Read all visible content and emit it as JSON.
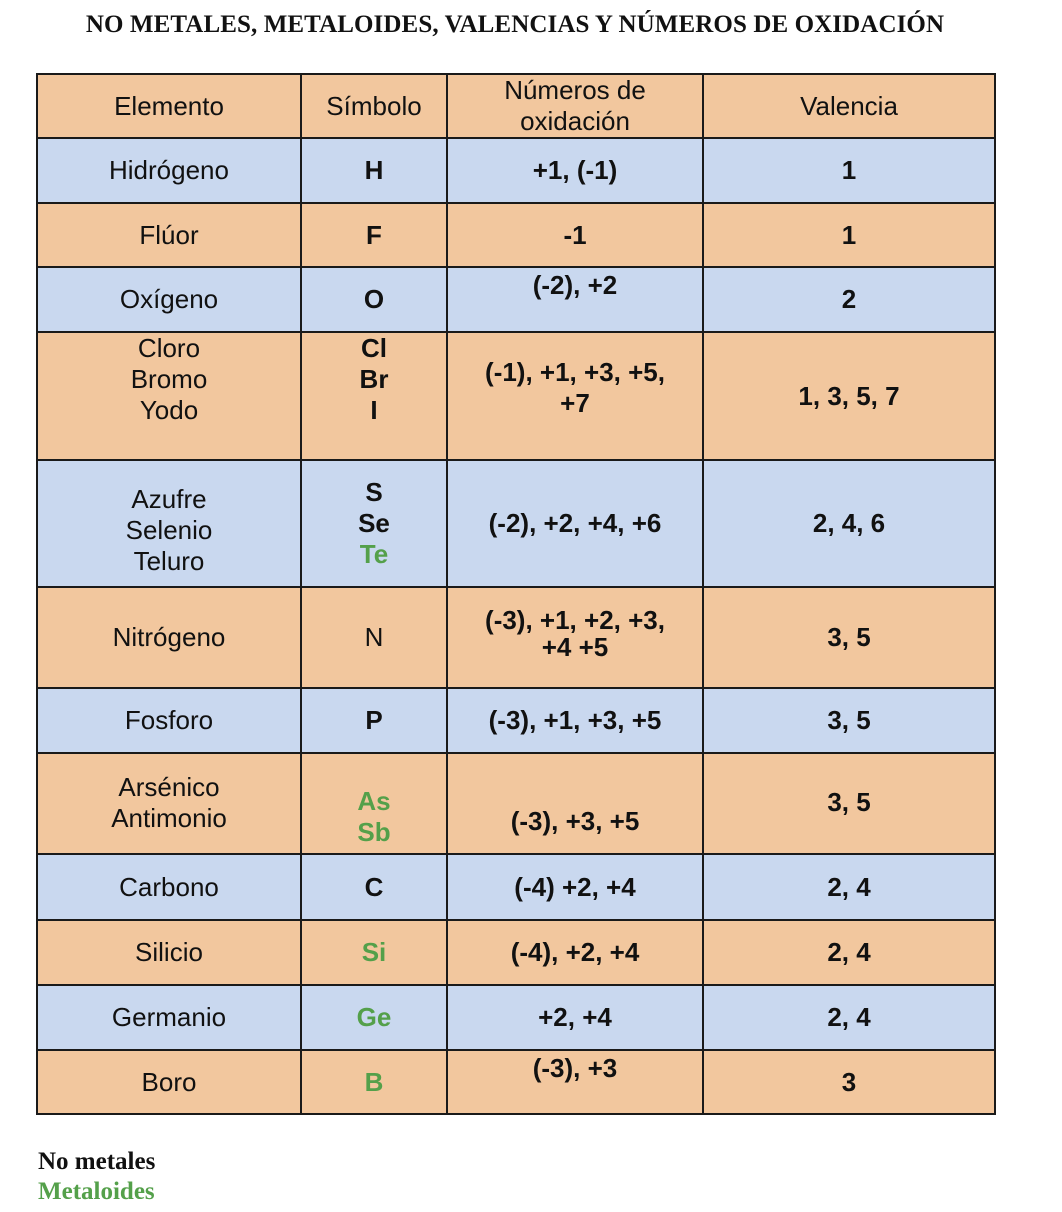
{
  "title": "NO METALES, METALOIDES, VALENCIAS Y NÚMEROS DE OXIDACIÓN",
  "headers": {
    "element": "Elemento",
    "symbol": "Símbolo",
    "oxidation_line1": "Números de",
    "oxidation_line2": "oxidación",
    "valence": "Valencia"
  },
  "rows": [
    {
      "elements": [
        "Hidrógeno"
      ],
      "symbols": [
        "H"
      ],
      "oxidation": [
        "+1, (-1)"
      ],
      "valence": "1"
    },
    {
      "elements": [
        "Flúor"
      ],
      "symbols": [
        "F"
      ],
      "oxidation": [
        "-1"
      ],
      "valence": "1"
    },
    {
      "elements": [
        "Oxígeno"
      ],
      "symbols": [
        "O"
      ],
      "oxidation": [
        "(-2), +2"
      ],
      "valence": "2"
    },
    {
      "elements": [
        "Cloro",
        "Bromo",
        "Yodo"
      ],
      "symbols": [
        "Cl",
        "Br",
        "I"
      ],
      "oxidation": [
        "(-1), +1, +3, +5,",
        "+7"
      ],
      "valence": "1, 3, 5, 7"
    },
    {
      "elements": [
        "Azufre",
        "Selenio",
        "Teluro"
      ],
      "symbols": [
        "S",
        "Se",
        "Te"
      ],
      "oxidation": [
        "(-2), +2, +4, +6"
      ],
      "valence": "2, 4, 6"
    },
    {
      "elements": [
        "Nitrógeno"
      ],
      "symbols": [
        "N"
      ],
      "oxidation": [
        "(-3), +1, +2, +3,",
        "+4 +5"
      ],
      "valence": "3, 5"
    },
    {
      "elements": [
        "Fosforo"
      ],
      "symbols": [
        "P"
      ],
      "oxidation": [
        "(-3), +1, +3, +5"
      ],
      "valence": "3, 5"
    },
    {
      "elements": [
        "Arsénico",
        "Antimonio"
      ],
      "symbols": [
        "As",
        "Sb"
      ],
      "oxidation": [
        "(-3), +3, +5"
      ],
      "valence": "3, 5"
    },
    {
      "elements": [
        "Carbono"
      ],
      "symbols": [
        "C"
      ],
      "oxidation": [
        "(-4) +2, +4"
      ],
      "valence": "2, 4"
    },
    {
      "elements": [
        "Silicio"
      ],
      "symbols": [
        "Si"
      ],
      "oxidation": [
        "(-4), +2, +4"
      ],
      "valence": "2, 4"
    },
    {
      "elements": [
        "Germanio"
      ],
      "symbols": [
        "Ge"
      ],
      "oxidation": [
        "+2, +4"
      ],
      "valence": "2, 4"
    },
    {
      "elements": [
        "Boro"
      ],
      "symbols": [
        "B"
      ],
      "oxidation": [
        "(-3), +3"
      ],
      "valence": "3"
    }
  ],
  "legend": {
    "nonmetals": "No metales",
    "metalloids": "Metaloides"
  },
  "colors": {
    "orange_row": "#f2c79e",
    "blue_row": "#c9d8ef",
    "metalloid_green": "#54a04a",
    "border": "#1a1a1a"
  }
}
